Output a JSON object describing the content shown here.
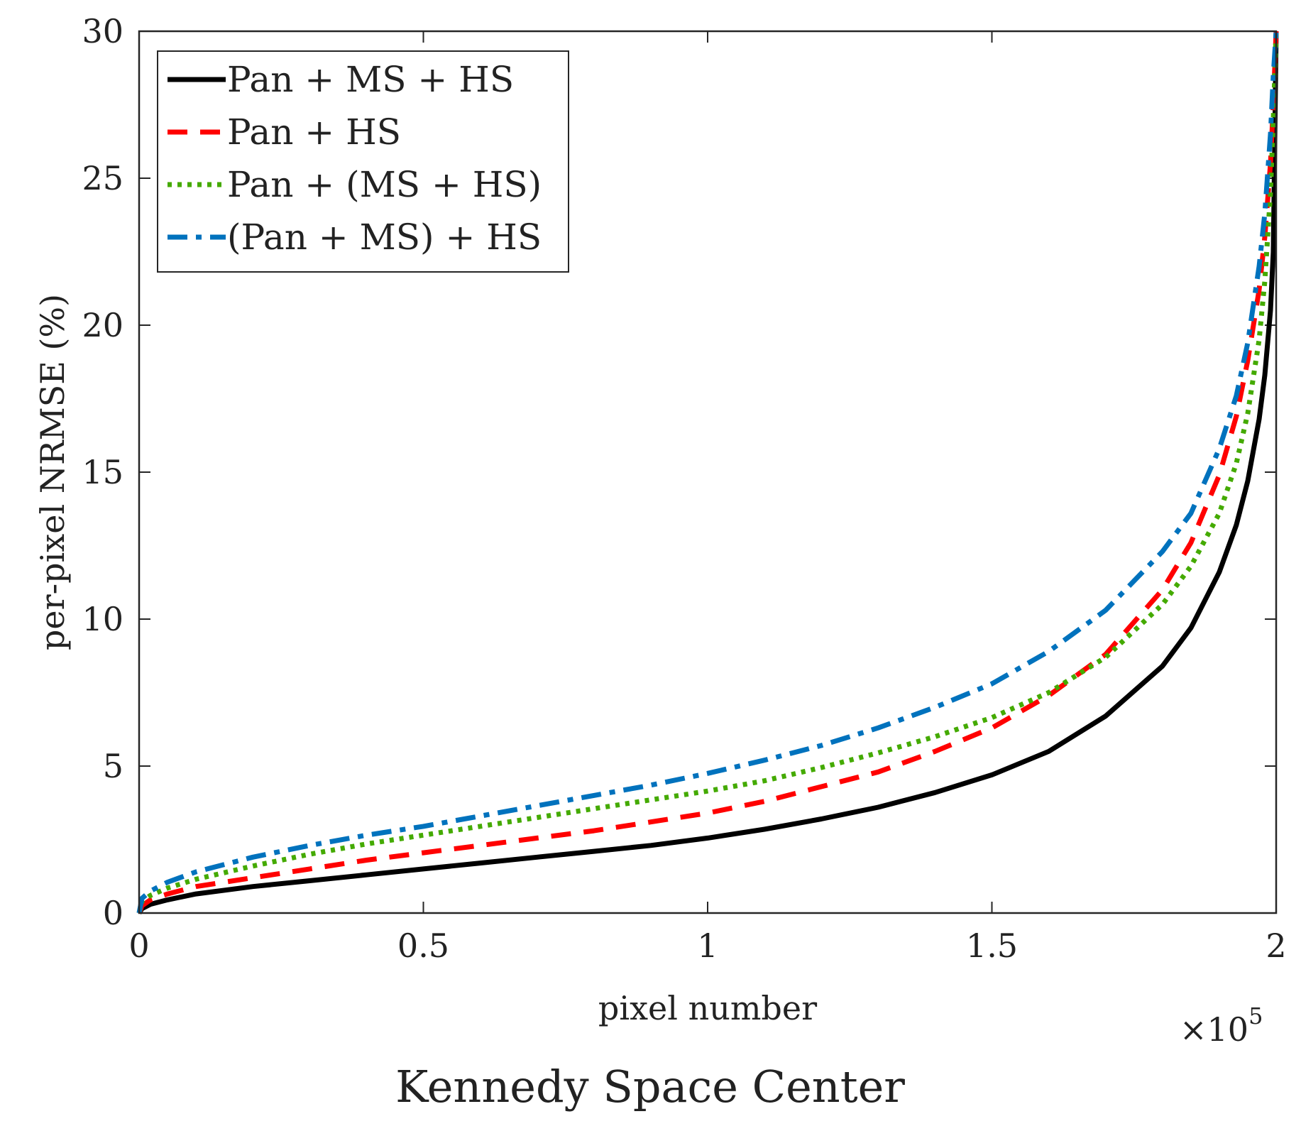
{
  "chart_data": {
    "type": "line",
    "title": "",
    "caption": "Kennedy Space Center",
    "xlabel": "pixel number",
    "ylabel": "per-pixel NRMSE (%)",
    "x_multiplier_label": "×10",
    "x_multiplier_exponent": "5",
    "xlim": [
      0,
      2
    ],
    "ylim": [
      0,
      30
    ],
    "xticks": [
      0,
      0.5,
      1,
      1.5,
      2
    ],
    "xtick_labels": [
      "0",
      "0.5",
      "1",
      "1.5",
      "2"
    ],
    "yticks": [
      0,
      5,
      10,
      15,
      20,
      25,
      30
    ],
    "ytick_labels": [
      "0",
      "5",
      "10",
      "15",
      "20",
      "25",
      "30"
    ],
    "grid": false,
    "legend_position": "top-left",
    "series": [
      {
        "name": "Pan + MS + HS",
        "color": "#000000",
        "style": "solid",
        "x": [
          0,
          0.005,
          0.02,
          0.05,
          0.1,
          0.2,
          0.3,
          0.4,
          0.5,
          0.6,
          0.7,
          0.8,
          0.9,
          1.0,
          1.1,
          1.2,
          1.3,
          1.4,
          1.5,
          1.6,
          1.7,
          1.8,
          1.85,
          1.9,
          1.93,
          1.95,
          1.97,
          1.98,
          1.99,
          1.995,
          2.0
        ],
        "y": [
          0,
          0.15,
          0.3,
          0.45,
          0.65,
          0.9,
          1.1,
          1.3,
          1.5,
          1.7,
          1.9,
          2.1,
          2.3,
          2.55,
          2.85,
          3.2,
          3.6,
          4.1,
          4.7,
          5.5,
          6.7,
          8.4,
          9.7,
          11.6,
          13.2,
          14.7,
          16.8,
          18.3,
          20.5,
          22.5,
          30
        ]
      },
      {
        "name": "Pan + HS",
        "color": "#ff0000",
        "style": "dashed",
        "x": [
          0,
          0.005,
          0.02,
          0.05,
          0.1,
          0.2,
          0.3,
          0.4,
          0.5,
          0.6,
          0.7,
          0.8,
          0.9,
          1.0,
          1.1,
          1.2,
          1.3,
          1.4,
          1.5,
          1.6,
          1.7,
          1.8,
          1.85,
          1.9,
          1.93,
          1.95,
          1.97,
          1.98,
          1.99,
          1.995,
          2.0
        ],
        "y": [
          0,
          0.25,
          0.45,
          0.65,
          0.9,
          1.2,
          1.5,
          1.8,
          2.05,
          2.3,
          2.55,
          2.8,
          3.1,
          3.4,
          3.8,
          4.3,
          4.8,
          5.5,
          6.3,
          7.4,
          8.8,
          11.0,
          12.6,
          14.9,
          16.9,
          18.8,
          21.2,
          23.0,
          25.5,
          27.5,
          30
        ]
      },
      {
        "name": "Pan + (MS + HS)",
        "color": "#44aa00",
        "style": "dotted",
        "x": [
          0,
          0.005,
          0.02,
          0.05,
          0.1,
          0.2,
          0.3,
          0.4,
          0.5,
          0.6,
          0.7,
          0.8,
          0.9,
          1.0,
          1.1,
          1.2,
          1.3,
          1.4,
          1.5,
          1.6,
          1.7,
          1.8,
          1.85,
          1.9,
          1.93,
          1.95,
          1.97,
          1.98,
          1.99,
          1.995,
          2.0
        ],
        "y": [
          0,
          0.4,
          0.6,
          0.85,
          1.15,
          1.6,
          2.0,
          2.35,
          2.65,
          2.95,
          3.25,
          3.55,
          3.85,
          4.15,
          4.5,
          4.95,
          5.45,
          6.0,
          6.65,
          7.5,
          8.7,
          10.5,
          11.8,
          13.6,
          15.3,
          17.0,
          19.5,
          21.5,
          24.5,
          27.0,
          30
        ]
      },
      {
        "name": "(Pan + MS) + HS",
        "color": "#0072bd",
        "style": "dashdot",
        "x": [
          0,
          0.005,
          0.02,
          0.05,
          0.1,
          0.2,
          0.3,
          0.4,
          0.5,
          0.6,
          0.7,
          0.8,
          0.9,
          1.0,
          1.1,
          1.2,
          1.3,
          1.4,
          1.5,
          1.6,
          1.7,
          1.8,
          1.85,
          1.9,
          1.93,
          1.95,
          1.97,
          1.98,
          1.99,
          1.995,
          2.0
        ],
        "y": [
          0,
          0.5,
          0.75,
          1.05,
          1.4,
          1.9,
          2.3,
          2.65,
          2.95,
          3.3,
          3.65,
          4.0,
          4.35,
          4.75,
          5.2,
          5.7,
          6.3,
          7.0,
          7.8,
          8.9,
          10.3,
          12.3,
          13.6,
          15.8,
          17.6,
          19.4,
          22.0,
          23.8,
          26.5,
          28.5,
          30
        ]
      }
    ]
  }
}
